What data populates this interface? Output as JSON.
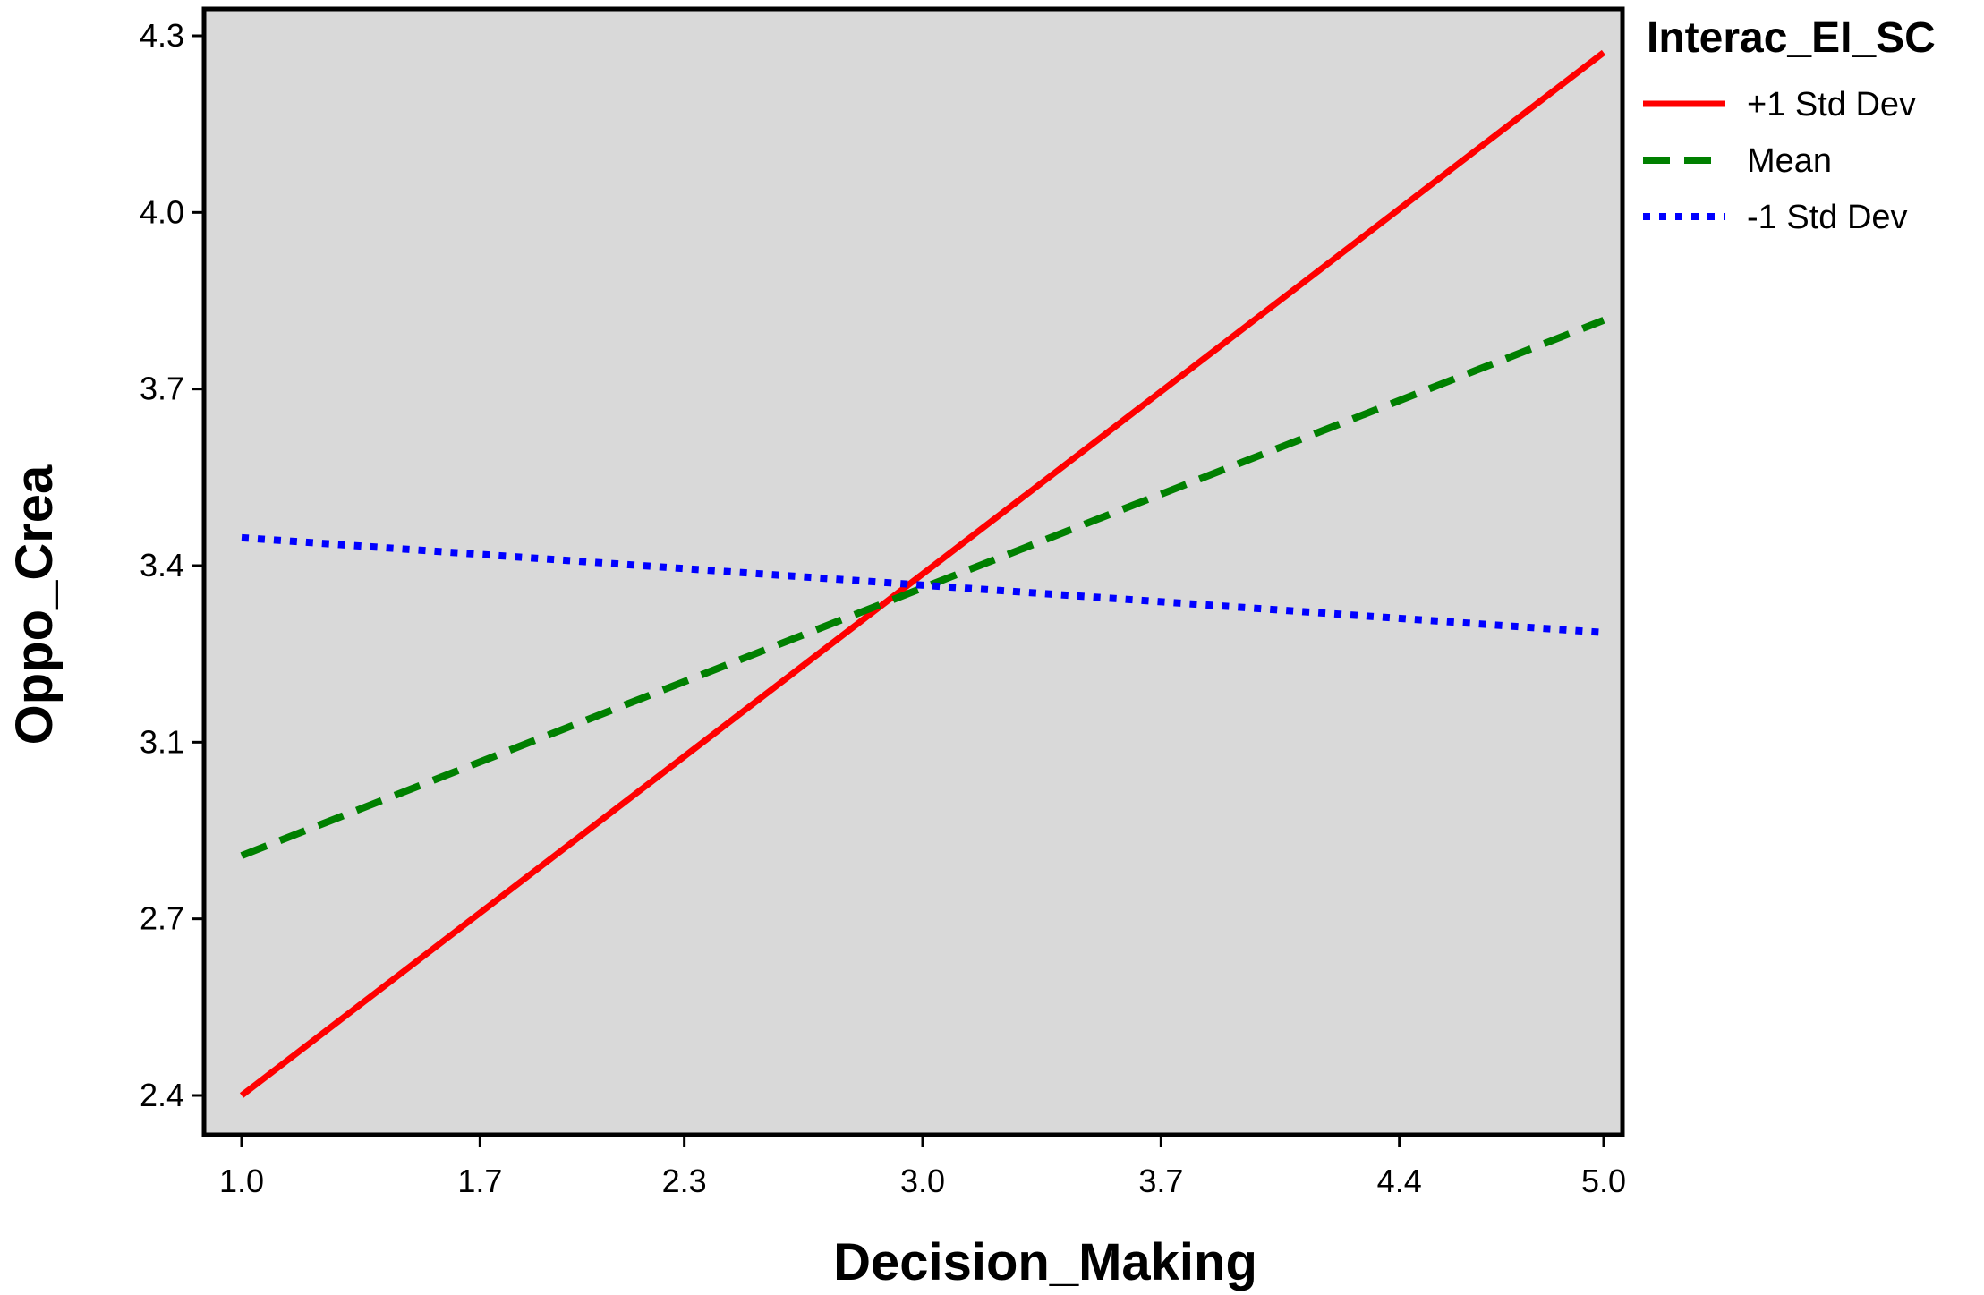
{
  "chart_data": {
    "type": "line",
    "title": "",
    "xlabel": "Decision_Making",
    "ylabel": "Oppo_Crea",
    "xlim": [
      1.0,
      5.0
    ],
    "ylim": [
      2.4,
      4.3
    ],
    "xticks": [
      "1.0",
      "1.7",
      "2.3",
      "3.0",
      "3.7",
      "4.4",
      "5.0"
    ],
    "yticks": [
      "2.4",
      "2.7",
      "3.1",
      "3.4",
      "3.7",
      "4.0",
      "4.3"
    ],
    "grid": false,
    "plot_background": "#d9d9d9",
    "legend": {
      "title": "Interac_EI_SC",
      "placement": "right-top",
      "entries": [
        "+1 Std Dev",
        "Mean",
        "-1 Std Dev"
      ]
    },
    "series": [
      {
        "name": "+1 Std Dev",
        "x": [
          1.0,
          5.0
        ],
        "y": [
          2.4,
          4.27
        ],
        "color": "#ff0000",
        "style": "solid"
      },
      {
        "name": "Mean",
        "x": [
          1.0,
          5.0
        ],
        "y": [
          2.83,
          3.79
        ],
        "color": "#008000",
        "style": "dashed"
      },
      {
        "name": "-1 Std Dev",
        "x": [
          1.0,
          5.0
        ],
        "y": [
          3.4,
          3.23
        ],
        "color": "#0000ff",
        "style": "dotted"
      }
    ]
  }
}
